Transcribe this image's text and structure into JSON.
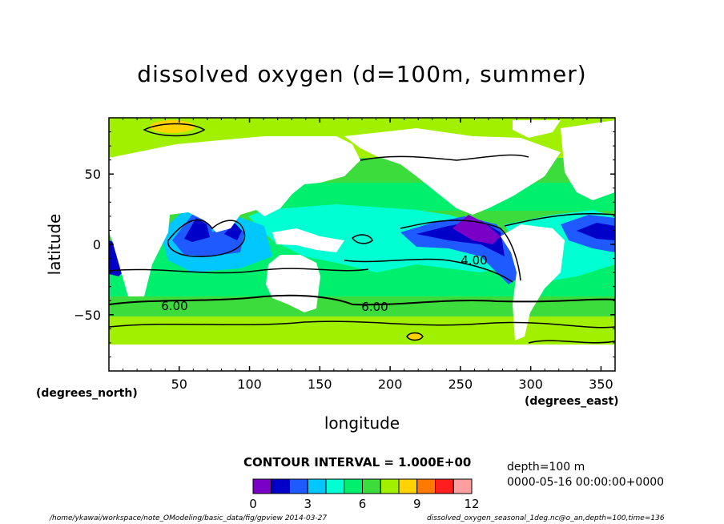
{
  "chart_data": {
    "type": "heatmap",
    "title": "dissolved oxygen (d=100m, summer)",
    "xlabel": "longitude",
    "ylabel": "latitude",
    "xlim": [
      0,
      360
    ],
    "ylim": [
      -90,
      90
    ],
    "x_ticks": [
      "50",
      "100",
      "150",
      "200",
      "250",
      "300",
      "350"
    ],
    "y_ticks": [
      "50",
      "0",
      "−50"
    ],
    "x_unit": "(degrees_east)",
    "y_unit": "(degrees_north)",
    "contour_labels": [
      "6.00",
      "6.00",
      "4.00"
    ],
    "contour_interval": "CONTOUR INTERVAL = 1.000E+00",
    "colorbar": {
      "levels": [
        0,
        1,
        2,
        3,
        4,
        5,
        6,
        7,
        8,
        9,
        10,
        11,
        12
      ],
      "tick_labels": [
        "0",
        "3",
        "6",
        "9",
        "12"
      ],
      "colors": [
        "#7a00c8",
        "#0000c8",
        "#1e5aff",
        "#00c8ff",
        "#00ffd2",
        "#00f06e",
        "#3cdc3c",
        "#a0f000",
        "#ffd200",
        "#ff7800",
        "#ff1e1e",
        "#ff9e9e"
      ]
    },
    "info": {
      "depth": "depth=100 m",
      "time": "0000-05-16 00:00:00+0000"
    },
    "footer_left": "/home/ykawai/workspace/note_OModeling/basic_data/fig/gpview  2014-03-27",
    "footer_right": "dissolved_oxygen_seasonal_1deg.nc@o_an,depth=100,time=136"
  }
}
